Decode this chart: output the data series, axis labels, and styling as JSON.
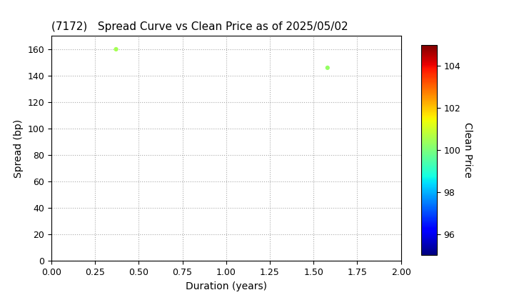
{
  "title": "(7172)   Spread Curve vs Clean Price as of 2025/05/02",
  "xlabel": "Duration (years)",
  "ylabel": "Spread (bp)",
  "colorbar_label": "Clean Price",
  "points": [
    {
      "duration": 0.37,
      "spread": 160,
      "clean_price": 100.5
    },
    {
      "duration": 1.58,
      "spread": 146,
      "clean_price": 100.3
    }
  ],
  "xlim": [
    0.0,
    2.0
  ],
  "ylim": [
    0,
    170
  ],
  "xticks": [
    0.0,
    0.25,
    0.5,
    0.75,
    1.0,
    1.25,
    1.5,
    1.75,
    2.0
  ],
  "yticks": [
    0,
    20,
    40,
    60,
    80,
    100,
    120,
    140,
    160
  ],
  "colorbar_min": 95,
  "colorbar_max": 105,
  "colorbar_ticks": [
    96,
    98,
    100,
    102,
    104
  ],
  "background_color": "#ffffff",
  "grid_color": "#aaaaaa",
  "title_fontsize": 11,
  "axis_fontsize": 10,
  "tick_fontsize": 9,
  "marker_size": 20
}
